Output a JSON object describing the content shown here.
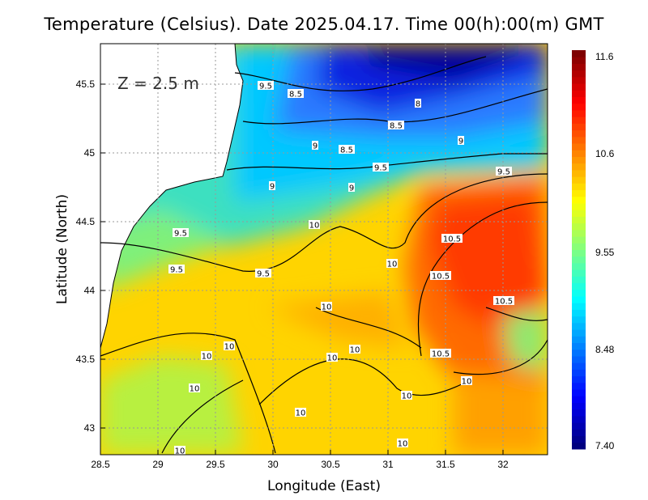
{
  "title": "Temperature (Celsius). Date 2025.04.17. Time 00(h):00(m) GMT",
  "depth_label": "Z = 2.5 m",
  "x_axis": {
    "label": "Longitude (East)",
    "ticks": [
      "28.5",
      "29",
      "29.5",
      "30",
      "30.5",
      "31",
      "31.5",
      "32"
    ],
    "range": [
      28.5,
      32.4
    ]
  },
  "y_axis": {
    "label": "Latitude (North)",
    "ticks": [
      "45.5",
      "45",
      "44.5",
      "44",
      "43.5",
      "43"
    ],
    "range": [
      42.8,
      45.8
    ]
  },
  "colorbar": {
    "ticks": [
      "11.6",
      "10.6",
      "9.55",
      "8.48",
      "7.40"
    ],
    "min": 7.4,
    "max": 11.6,
    "colors": [
      "#00007f",
      "#0000ff",
      "#0080ff",
      "#00ffff",
      "#80ff80",
      "#ffff00",
      "#ff8000",
      "#ff0000",
      "#7f0000"
    ]
  },
  "contour_labels": [
    "9.5",
    "8.5",
    "8",
    "8.5",
    "9",
    "9",
    "8.5",
    "9.5",
    "9.5",
    "9",
    "9",
    "9.5",
    "10",
    "10.5",
    "10",
    "9.5",
    "9.5",
    "10.5",
    "10",
    "10.5",
    "10",
    "10",
    "10",
    "10",
    "10.5",
    "10",
    "10",
    "10",
    "10",
    "10",
    "10"
  ]
}
